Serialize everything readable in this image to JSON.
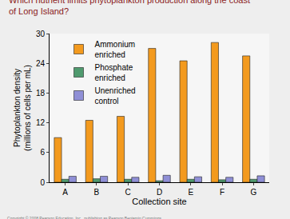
{
  "chart_data": {
    "type": "bar",
    "title": "Which nutrient limits phytoplankton production along the coast of Long Island?",
    "x_label": "Collection site",
    "y_label": "Phytoplankton density (millions of cells per mL)",
    "categories": [
      "A",
      "B",
      "C",
      "D",
      "E",
      "F",
      "G"
    ],
    "series": [
      {
        "name": "Ammonium enriched",
        "color": "#f39a1e",
        "values": [
          9,
          12.5,
          13.3,
          27,
          24.5,
          28.2,
          25.5
        ]
      },
      {
        "name": "Phosphate enriched",
        "color": "#4f9a6e",
        "values": [
          0.6,
          0.7,
          0.6,
          0.3,
          0.6,
          0.5,
          0.6
        ]
      },
      {
        "name": "Unenriched control",
        "color": "#8f8fd6",
        "values": [
          1.2,
          1.2,
          1.0,
          1.4,
          1.1,
          1.0,
          1.3
        ]
      }
    ],
    "ylim": [
      0,
      30
    ],
    "yticks": [
      0,
      6,
      12,
      18,
      24,
      30
    ],
    "grid": false,
    "legend": "upper left",
    "annotations": [
      "Copyright © 2008 Pearson Education, Inc., publishing as Pearson Benjamin Cummings."
    ]
  }
}
